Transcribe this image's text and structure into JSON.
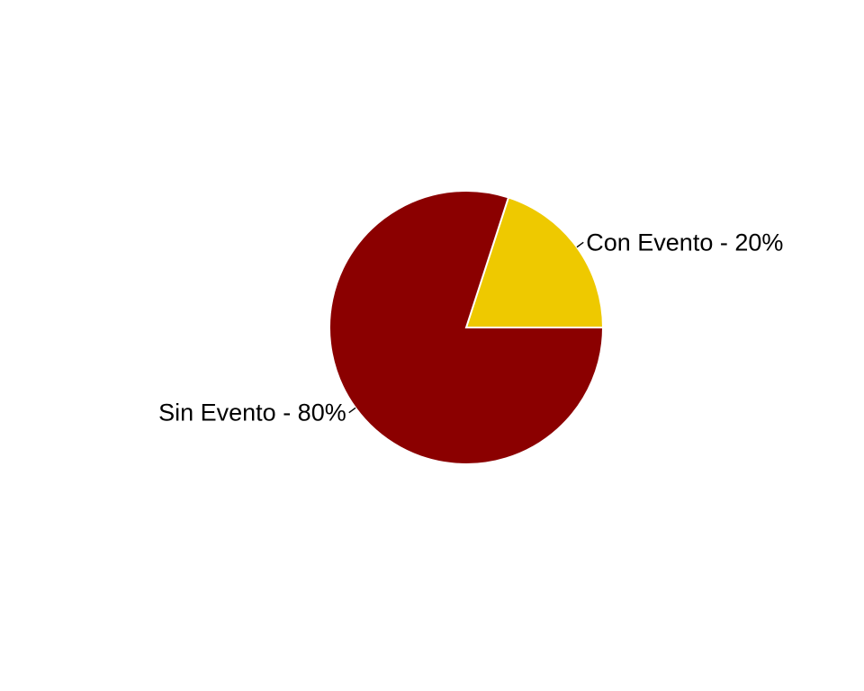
{
  "chart_data": {
    "type": "pie",
    "title": "",
    "slices": [
      {
        "name": "Con Evento",
        "value": 20,
        "label": "Con Evento - 20%",
        "color": "#EEC900"
      },
      {
        "name": "Sin Evento",
        "value": 80,
        "label": "Sin Evento - 80%",
        "color": "#8B0000"
      }
    ],
    "slice_border_color": "#FFFFFF",
    "legend": "none",
    "start_angle": "3 o'clock, counter-clockwise"
  }
}
